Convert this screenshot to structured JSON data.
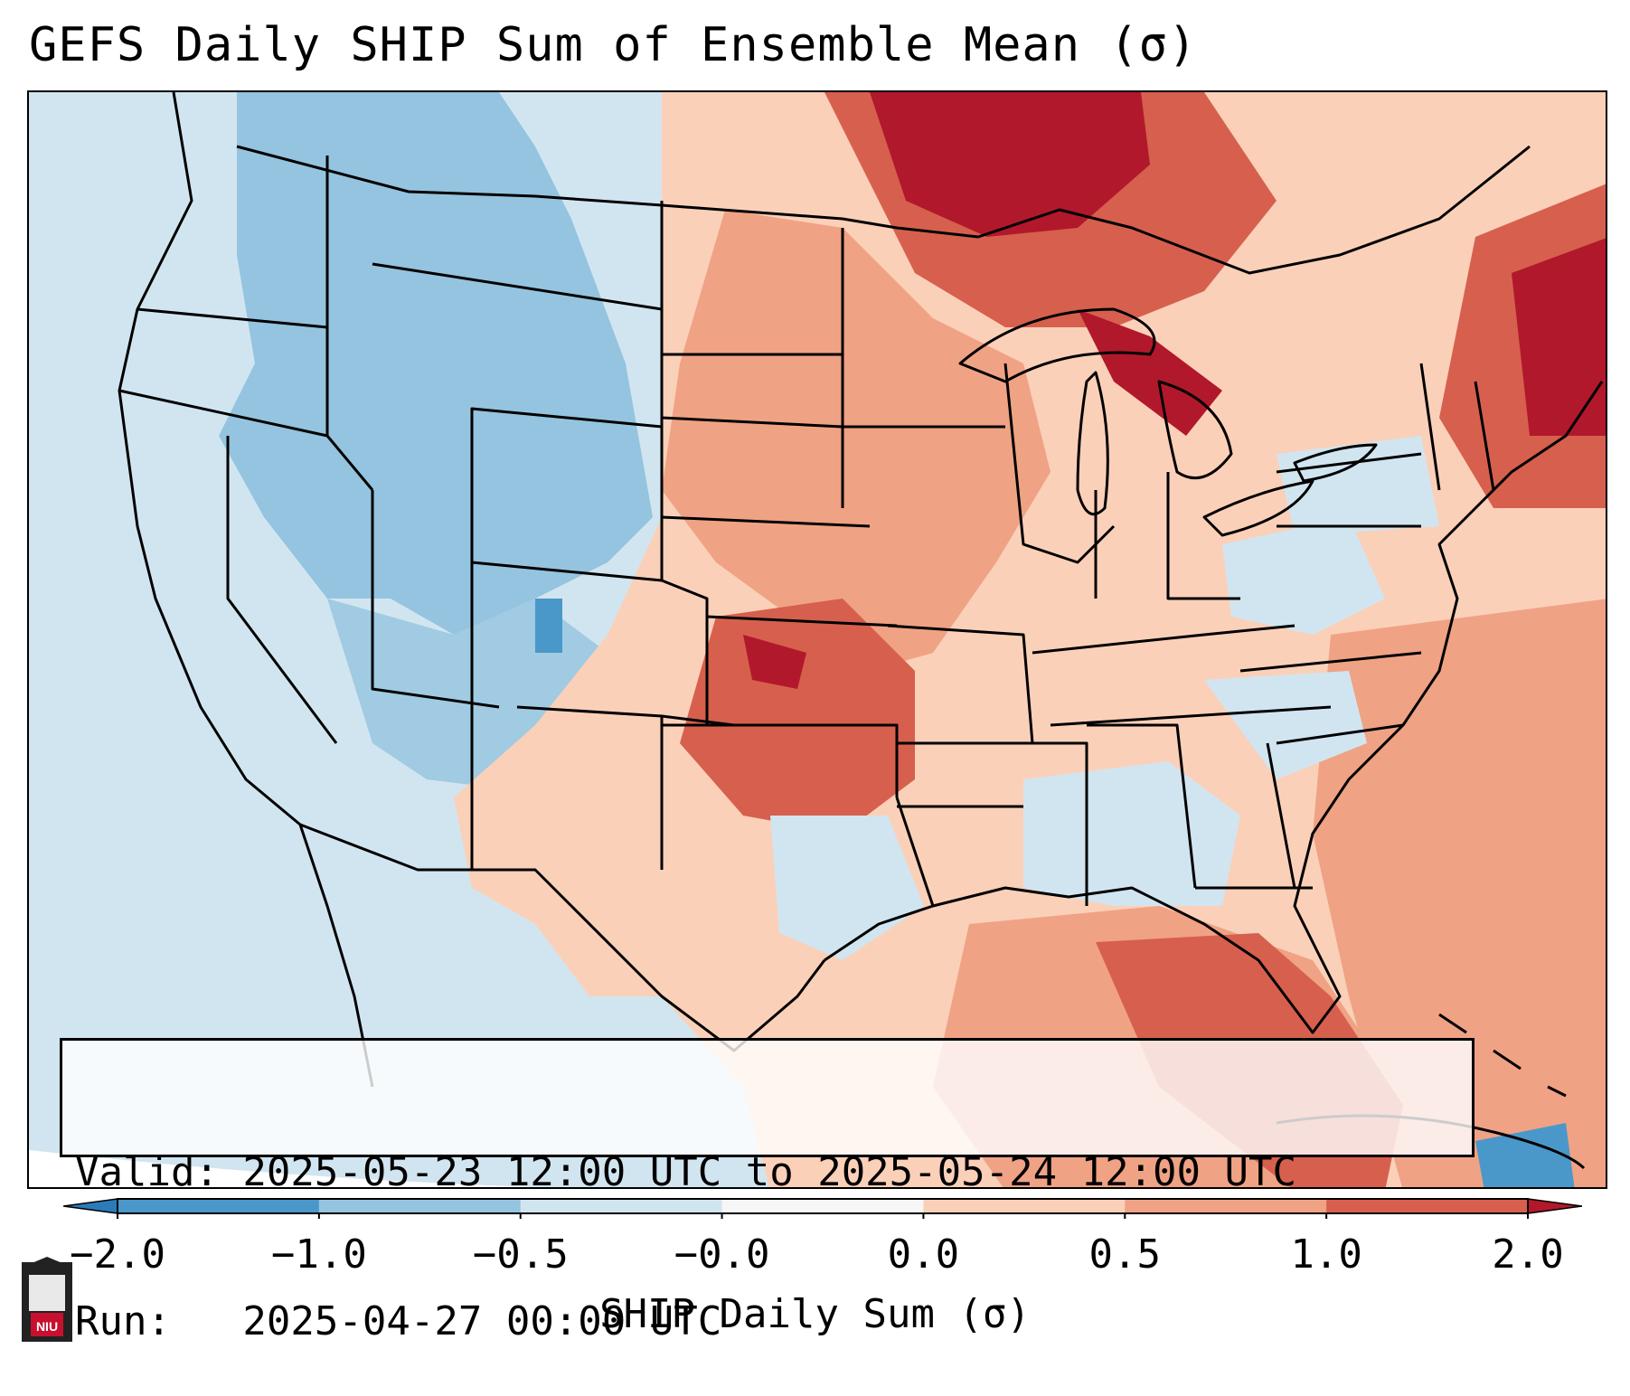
{
  "title": "GEFS Daily SHIP Sum of Ensemble Mean (σ)",
  "info": {
    "valid_line": "Valid: 2025-05-23 12:00 UTC to 2025-05-24 12:00 UTC",
    "run_line": "Run:   2025-04-27 00:00 UTC"
  },
  "colorbar": {
    "label": "SHIP Daily Sum (σ)",
    "ticks": [
      "−2.0",
      "−1.0",
      "−0.5",
      "−0.0",
      "0.0",
      "0.5",
      "1.0",
      "2.0"
    ],
    "extend": "both",
    "colors": [
      "#2b7bba",
      "#4a98c9",
      "#94c4df",
      "#d1e5f0",
      "#f7f7f7",
      "#fbd0b9",
      "#f0a285",
      "#d6604d",
      "#b2182b"
    ]
  },
  "logo": {
    "text": "NIU",
    "color": "#c8102e"
  },
  "map": {
    "region": "Contiguous United States",
    "ocean_color": "#d1e5f0",
    "land_blue_light": "#d1e5f0",
    "land_blue_mid": "#94c4df",
    "land_red_light": "#fbd0b9",
    "land_red_mid": "#f0a285",
    "land_red_strong": "#d6604d",
    "land_red_dark": "#b2182b"
  }
}
